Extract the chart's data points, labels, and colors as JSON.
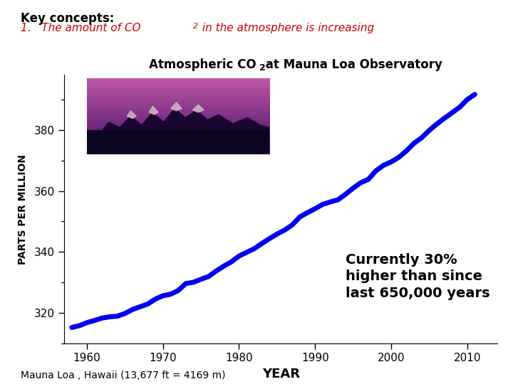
{
  "title_part1": "Atmospheric CO",
  "title_sub": "2",
  "title_part2": " at Mauna Loa Observatory",
  "xlabel": "YEAR",
  "ylabel": "PARTS PER MILLION",
  "key_concept_title": "Key concepts:",
  "key_concept_text": "1.   The amount of CO",
  "key_concept_sub": "2",
  "key_concept_rest": " in the atmosphere is increasing",
  "annotation": "Currently 30%\nhigher than since\nlast 650,000 years",
  "footer": "Mauna Loa , Hawaii (13,677 ft = 4169 m)",
  "x_ticks": [
    1960,
    1970,
    1980,
    1990,
    2000,
    2010
  ],
  "y_ticks": [
    320,
    340,
    360,
    380
  ],
  "ylim": [
    310,
    398
  ],
  "xlim": [
    1957,
    2014
  ],
  "line_color": "#0000ee",
  "line_width": 5.0,
  "bg_color": "#ffffff",
  "title_color": "#000000",
  "annotation_color": "#000000",
  "header_color": "#cc0000",
  "co2_data_x": [
    1958,
    1959,
    1960,
    1961,
    1962,
    1963,
    1964,
    1965,
    1966,
    1967,
    1968,
    1969,
    1970,
    1971,
    1972,
    1973,
    1974,
    1975,
    1976,
    1977,
    1978,
    1979,
    1980,
    1981,
    1982,
    1983,
    1984,
    1985,
    1986,
    1987,
    1988,
    1989,
    1990,
    1991,
    1992,
    1993,
    1994,
    1995,
    1996,
    1997,
    1998,
    1999,
    2000,
    2001,
    2002,
    2003,
    2004,
    2005,
    2006,
    2007,
    2008,
    2009,
    2010,
    2011
  ],
  "co2_data_y": [
    315.3,
    315.9,
    316.9,
    317.6,
    318.4,
    318.8,
    319.0,
    319.9,
    321.2,
    322.1,
    323.0,
    324.6,
    325.7,
    326.2,
    327.4,
    329.7,
    330.1,
    331.1,
    332.0,
    333.8,
    335.4,
    336.8,
    338.7,
    339.9,
    341.1,
    342.8,
    344.4,
    345.9,
    347.2,
    348.9,
    351.5,
    352.9,
    354.2,
    355.6,
    356.4,
    357.1,
    358.9,
    360.9,
    362.7,
    363.8,
    366.6,
    368.4,
    369.5,
    371.0,
    373.1,
    375.6,
    377.4,
    379.8,
    381.9,
    383.8,
    385.6,
    387.4,
    389.9,
    391.6
  ]
}
